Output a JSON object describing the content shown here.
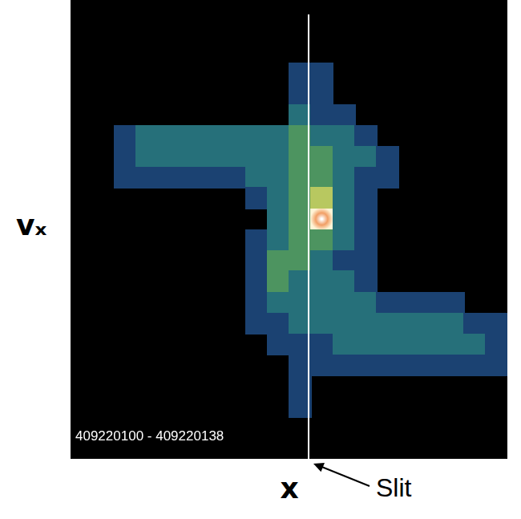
{
  "chart_data": {
    "type": "heatmap",
    "xlabel": "x",
    "ylabel": "vₓ",
    "annotation": "409220100 - 409220138",
    "slit": {
      "x": 10.9,
      "label": "Slit"
    },
    "xlim": [
      0,
      20
    ],
    "ylim": [
      0,
      22
    ],
    "tick_labels": false,
    "grid": false,
    "x": [
      0.5,
      1.5,
      2.5,
      3.5,
      4.5,
      5.5,
      6.5,
      7.5,
      8.5,
      9.5,
      10.5,
      11.5,
      12.5,
      13.5,
      14.5,
      15.5,
      16.5,
      17.5,
      18.5,
      19.5
    ],
    "y": [
      21.5,
      20.5,
      19.5,
      18.5,
      17.5,
      16.5,
      15.5,
      14.5,
      13.5,
      12.5,
      11.5,
      10.5,
      9.5,
      8.5,
      7.5,
      6.5,
      5.5,
      4.5,
      3.5,
      2.5,
      1.5,
      0.5
    ],
    "cells": [
      [
        0,
        0,
        0,
        0,
        0,
        0,
        0,
        0,
        0,
        0,
        0,
        0,
        0,
        0,
        0,
        0,
        0,
        0,
        0,
        0
      ],
      [
        0,
        0,
        0,
        0,
        0,
        0,
        0,
        0,
        0,
        0,
        0,
        0,
        0,
        0,
        0,
        0,
        0,
        0,
        0,
        0
      ],
      [
        0,
        0,
        0,
        0,
        0,
        0,
        0,
        0,
        0,
        0,
        0,
        0,
        0,
        0,
        0,
        0,
        0,
        0,
        0,
        0
      ],
      [
        0,
        0,
        0,
        0,
        0,
        0,
        0,
        0,
        0,
        0,
        1,
        1,
        0,
        0,
        0,
        0,
        0,
        0,
        0,
        0
      ],
      [
        0,
        0,
        0,
        0,
        0,
        0,
        0,
        0,
        0,
        0,
        1,
        1,
        0,
        0,
        0,
        0,
        0,
        0,
        0,
        0
      ],
      [
        0,
        0,
        0,
        0,
        0,
        0,
        0,
        0,
        0,
        0,
        2,
        1,
        1,
        0,
        0,
        0,
        0,
        0,
        0,
        0
      ],
      [
        0,
        0,
        1,
        2,
        2,
        2,
        2,
        2,
        2,
        2,
        3,
        2,
        2,
        1,
        0,
        0,
        0,
        0,
        0,
        0
      ],
      [
        0,
        0,
        1,
        2,
        2,
        2,
        2,
        2,
        2,
        2,
        3,
        3,
        2,
        2,
        1,
        0,
        0,
        0,
        0,
        0
      ],
      [
        0,
        0,
        1,
        1,
        1,
        1,
        1,
        1,
        2,
        2,
        3,
        3,
        2,
        1,
        1,
        0,
        0,
        0,
        0,
        0
      ],
      [
        0,
        0,
        0,
        0,
        0,
        0,
        0,
        0,
        1,
        2,
        3,
        4,
        2,
        1,
        0,
        0,
        0,
        0,
        0,
        0
      ],
      [
        0,
        0,
        0,
        0,
        0,
        0,
        0,
        0,
        0,
        2,
        3,
        5,
        2,
        1,
        0,
        0,
        0,
        0,
        0,
        0
      ],
      [
        0,
        0,
        0,
        0,
        0,
        0,
        0,
        0,
        1,
        2,
        3,
        3,
        2,
        1,
        0,
        0,
        0,
        0,
        0,
        0
      ],
      [
        0,
        0,
        0,
        0,
        0,
        0,
        0,
        0,
        1,
        3,
        3,
        2,
        1,
        1,
        0,
        0,
        0,
        0,
        0,
        0
      ],
      [
        0,
        0,
        0,
        0,
        0,
        0,
        0,
        0,
        1,
        3,
        2,
        2,
        2,
        1,
        0,
        0,
        0,
        0,
        0,
        0
      ],
      [
        0,
        0,
        0,
        0,
        0,
        0,
        0,
        0,
        1,
        2,
        2,
        2,
        2,
        2,
        1,
        1,
        1,
        1,
        0,
        0
      ],
      [
        0,
        0,
        0,
        0,
        0,
        0,
        0,
        0,
        1,
        1,
        2,
        2,
        2,
        2,
        2,
        2,
        2,
        2,
        1,
        1
      ],
      [
        0,
        0,
        0,
        0,
        0,
        0,
        0,
        0,
        0,
        1,
        1,
        1,
        2,
        2,
        2,
        2,
        2,
        2,
        2,
        1
      ],
      [
        0,
        0,
        0,
        0,
        0,
        0,
        0,
        0,
        0,
        0,
        1,
        1,
        1,
        1,
        1,
        1,
        1,
        1,
        1,
        1
      ],
      [
        0,
        0,
        0,
        0,
        0,
        0,
        0,
        0,
        0,
        0,
        1,
        0,
        0,
        0,
        0,
        0,
        0,
        0,
        0,
        0
      ],
      [
        0,
        0,
        0,
        0,
        0,
        0,
        0,
        0,
        0,
        0,
        1,
        0,
        0,
        0,
        0,
        0,
        0,
        0,
        0,
        0
      ],
      [
        0,
        0,
        0,
        0,
        0,
        0,
        0,
        0,
        0,
        0,
        0,
        0,
        0,
        0,
        0,
        0,
        0,
        0,
        0,
        0
      ],
      [
        0,
        0,
        0,
        0,
        0,
        0,
        0,
        0,
        0,
        0,
        0,
        0,
        0,
        0,
        0,
        0,
        0,
        0,
        0,
        0
      ]
    ]
  }
}
